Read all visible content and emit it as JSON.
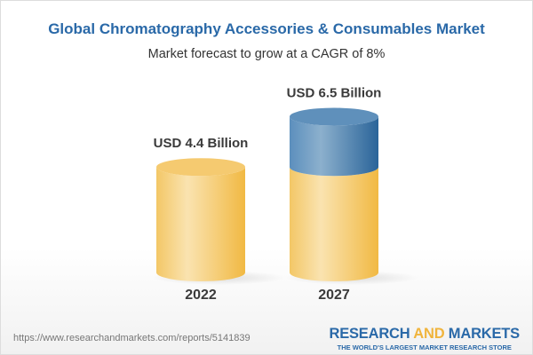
{
  "title": "Global Chromatography Accessories & Consumables Market",
  "subtitle": "Market forecast to grow at a CAGR of 8%",
  "chart_data": {
    "type": "bar",
    "style": "3d-cylinder",
    "categories": [
      "2022",
      "2027"
    ],
    "values": [
      4.4,
      6.5
    ],
    "data_labels": [
      "USD 4.4 Billion",
      "USD 6.5 Billion"
    ],
    "unit": "USD Billion",
    "colors": {
      "base": "#f3c35c",
      "growth": "#4f86b5"
    }
  },
  "footer": {
    "url": "https://www.researchandmarkets.com/reports/5141839",
    "logo_part1": "RESEARCH ",
    "logo_part2": "AND",
    "logo_part3": " MARKETS",
    "tagline": "THE WORLD'S LARGEST MARKET RESEARCH STORE"
  }
}
